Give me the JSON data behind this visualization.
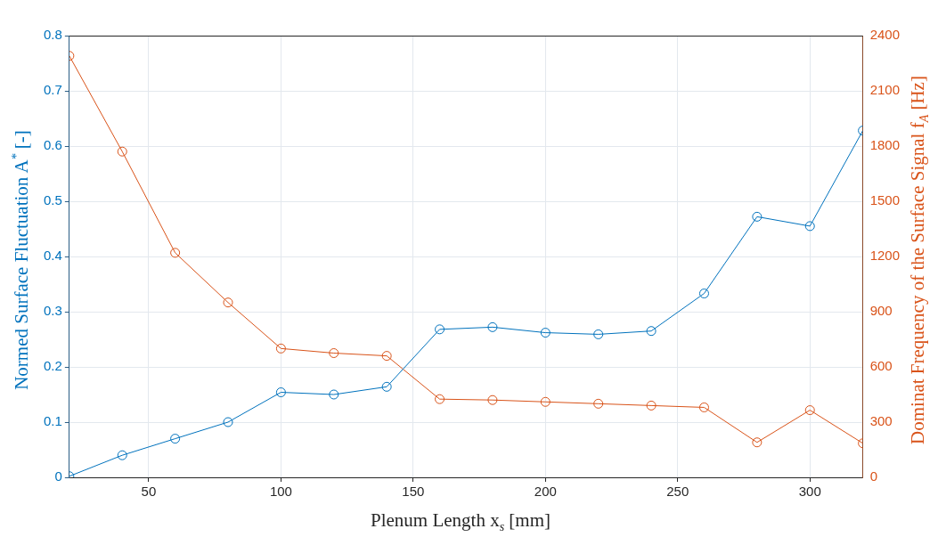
{
  "chart_data": {
    "type": "line",
    "xlabel": "Plenum Length x$_{s}$ [mm]",
    "ylabel": "Normed Surface Fluctuation A$^{*}$ [-]",
    "y2label": "Dominat Frequency of the Surface Signal f$_{A}$ [Hz]",
    "x": [
      20,
      40,
      60,
      80,
      100,
      120,
      140,
      160,
      180,
      200,
      220,
      240,
      260,
      280,
      300,
      320
    ],
    "series": [
      {
        "color": "#0072bd",
        "values": [
          0.002,
          0.04,
          0.07,
          0.1,
          0.154,
          0.15,
          0.164,
          0.268,
          0.272,
          0.262,
          0.259,
          0.265,
          0.333,
          0.472,
          0.455,
          0.628
        ]
      },
      {
        "color": "#d95319",
        "axis": "y2",
        "values": [
          2290,
          1770,
          1220,
          950,
          700,
          675,
          660,
          425,
          420,
          410,
          400,
          390,
          380,
          190,
          365,
          185
        ]
      }
    ],
    "xlim": [
      20,
      320
    ],
    "xticks": [
      50,
      100,
      150,
      200,
      250,
      300
    ],
    "ylim": [
      0,
      0.8
    ],
    "yticks": [
      0,
      0.1,
      0.2,
      0.3,
      0.4,
      0.5,
      0.6,
      0.7,
      0.8
    ],
    "y2lim": [
      0,
      2400
    ],
    "y2ticks": [
      0,
      300,
      600,
      900,
      1200,
      1500,
      1800,
      2100,
      2400
    ],
    "grid": true,
    "legend": false,
    "marker": "circle",
    "line_style": "solid"
  }
}
